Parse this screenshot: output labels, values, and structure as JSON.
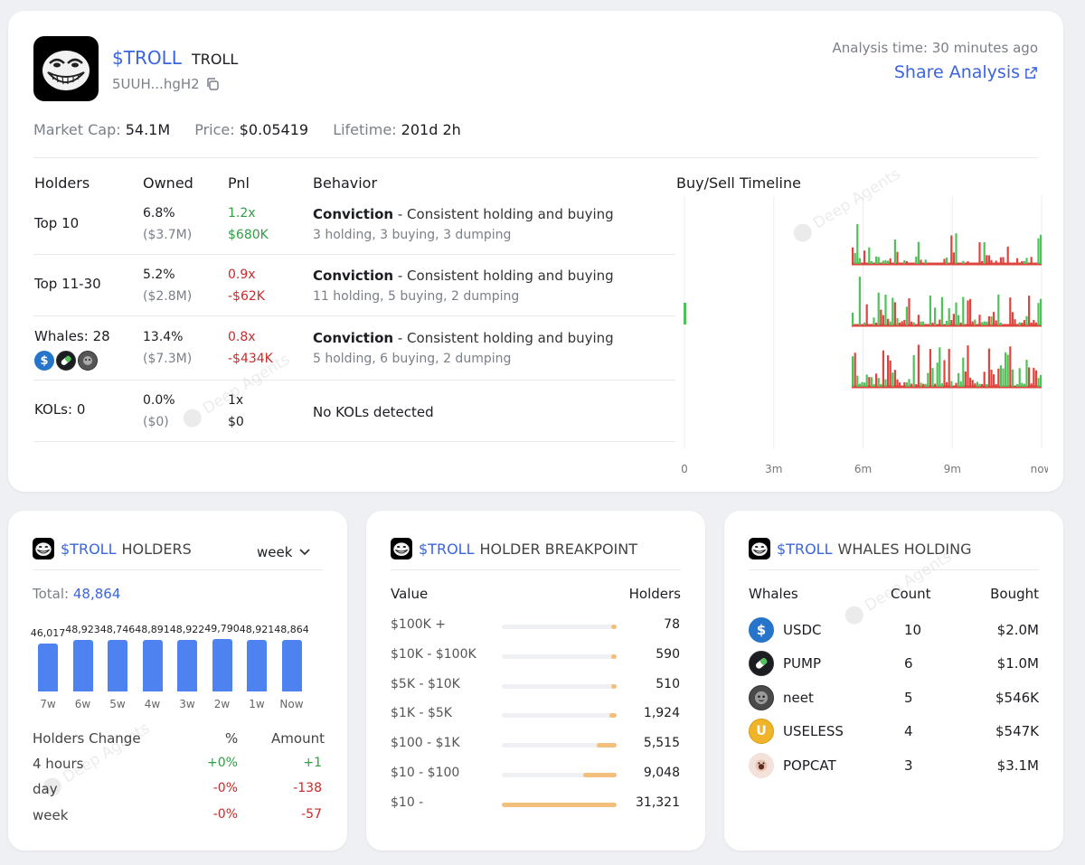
{
  "token": {
    "symbol": "$TROLL",
    "name": "TROLL",
    "address": "5UUH...hgH2",
    "analysis_time": "Analysis time: 30 minutes ago",
    "share_label": "Share Analysis",
    "market_cap_label": "Market Cap:",
    "market_cap": "54.1M",
    "price_label": "Price:",
    "price": "$0.05419",
    "lifetime_label": "Lifetime:",
    "lifetime": "201d 2h"
  },
  "watermark": "Deep Agents",
  "holders_table": {
    "headers": [
      "Holders",
      "Owned",
      "Pnl",
      "Behavior"
    ],
    "timeline_title": "Buy/Sell Timeline",
    "rows": [
      {
        "label": "Top 10",
        "owned": "6.8%",
        "owned_value": "($3.7M)",
        "pnl": "1.2x",
        "pnl_value": "$680K",
        "pnl_color": "green",
        "behavior": "Conviction",
        "behavior_desc": " - Consistent holding and buying",
        "behavior_detail": "3 holding, 3 buying, 3 dumping"
      },
      {
        "label": "Top 11-30",
        "owned": "5.2%",
        "owned_value": "($2.8M)",
        "pnl": "0.9x",
        "pnl_value": "-$62K",
        "pnl_color": "red",
        "behavior": "Conviction",
        "behavior_desc": " - Consistent holding and buying",
        "behavior_detail": "11 holding, 5 buying, 2 dumping"
      },
      {
        "label": "Whales: 28",
        "owned": "13.4%",
        "owned_value": "($7.3M)",
        "pnl": "0.8x",
        "pnl_value": "-$434K",
        "pnl_color": "red",
        "behavior": "Conviction",
        "behavior_desc": " - Consistent holding and buying",
        "behavior_detail": "5 holding, 6 buying, 2 dumping"
      },
      {
        "label": "KOLs: 0",
        "owned": "0.0%",
        "owned_value": "($0)",
        "pnl": "1x",
        "pnl_value": "$0",
        "pnl_color": "black",
        "behavior_plain": "No KOLs detected"
      }
    ],
    "timeline_ticks": [
      "0",
      "3m",
      "6m",
      "9m",
      "now"
    ]
  },
  "holders_panel": {
    "title": "HOLDERS",
    "period": "week",
    "total_label": "Total:",
    "total": "48,864",
    "change_headers": [
      "Holders Change",
      "%",
      "Amount"
    ],
    "changes": [
      {
        "period": "4 hours",
        "pct": "+0%",
        "amount": "+1",
        "color": "green"
      },
      {
        "period": "day",
        "pct": "-0%",
        "amount": "-138",
        "color": "red"
      },
      {
        "period": "week",
        "pct": "-0%",
        "amount": "-57",
        "color": "red"
      }
    ]
  },
  "chart_data": {
    "type": "bar",
    "title": "$TROLL HOLDERS",
    "categories": [
      "7w",
      "6w",
      "5w",
      "4w",
      "3w",
      "2w",
      "1w",
      "Now"
    ],
    "values": [
      46017,
      48923,
      48746,
      48891,
      48922,
      49790,
      48921,
      48864
    ],
    "value_labels": [
      "46,017",
      "48,923",
      "48,746",
      "48,891",
      "48,922",
      "49,790",
      "48,921",
      "48,864"
    ],
    "ylim": [
      0,
      50000
    ],
    "color": "#4e82f0"
  },
  "breakpoint_panel": {
    "title": "HOLDER BREAKPOINT",
    "headers": [
      "Value",
      "Holders"
    ],
    "rows": [
      {
        "range": "$100K +",
        "holders": "78",
        "fraction": 0.0025
      },
      {
        "range": "$10K - $100K",
        "holders": "590",
        "fraction": 0.019
      },
      {
        "range": "$5K - $10K",
        "holders": "510",
        "fraction": 0.016
      },
      {
        "range": "$1K - $5K",
        "holders": "1,924",
        "fraction": 0.061
      },
      {
        "range": "$100 - $1K",
        "holders": "5,515",
        "fraction": 0.176
      },
      {
        "range": "$10 - $100",
        "holders": "9,048",
        "fraction": 0.289
      },
      {
        "range": "$10 -",
        "holders": "31,321",
        "fraction": 1.0
      }
    ]
  },
  "whales_panel": {
    "title": "WHALES HOLDING",
    "headers": [
      "Whales",
      "Count",
      "Bought"
    ],
    "rows": [
      {
        "name": "USDC",
        "count": "10",
        "bought": "$2.0M",
        "icon": "usdc-icon",
        "color": "#2775ca"
      },
      {
        "name": "PUMP",
        "count": "6",
        "bought": "$1.0M",
        "icon": "pump-icon",
        "color": "#1b1d22"
      },
      {
        "name": "neet",
        "count": "5",
        "bought": "$546K",
        "icon": "neet-icon",
        "color": "#3a3a3a"
      },
      {
        "name": "USELESS",
        "count": "4",
        "bought": "$547K",
        "icon": "useless-icon",
        "color": "#f0b429"
      },
      {
        "name": "POPCAT",
        "count": "3",
        "bought": "$3.1M",
        "icon": "popcat-icon",
        "color": "#e9c9bd"
      }
    ]
  },
  "colors": {
    "accent": "#3b64e0",
    "buy": "#51c15a",
    "sell": "#e0443e",
    "breakpoint": "#f2bf7c"
  }
}
